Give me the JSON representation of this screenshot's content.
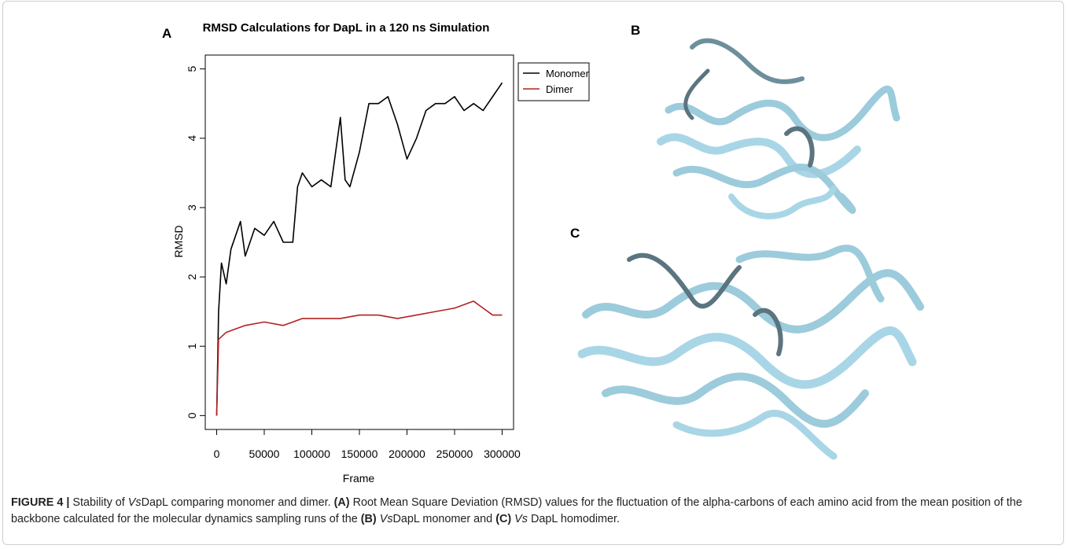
{
  "chart_data": {
    "type": "line",
    "title": "RMSD Calculations for DapL in a 120 ns Simulation",
    "x_label": "Frame",
    "y_label": "RMSD",
    "xlim": [
      -12000,
      312000
    ],
    "ylim": [
      -0.2,
      5.2
    ],
    "xticks": [
      0,
      50000,
      100000,
      150000,
      200000,
      250000,
      300000
    ],
    "yticks": [
      0,
      1,
      2,
      3,
      4,
      5
    ],
    "grid": false,
    "legend": "outside-right",
    "series": [
      {
        "name": "Monomer",
        "color": "#000000",
        "x": [
          0,
          2000,
          5000,
          10000,
          15000,
          20000,
          25000,
          30000,
          40000,
          50000,
          60000,
          70000,
          80000,
          85000,
          90000,
          100000,
          110000,
          120000,
          130000,
          135000,
          140000,
          150000,
          160000,
          170000,
          180000,
          190000,
          200000,
          210000,
          220000,
          230000,
          240000,
          250000,
          260000,
          270000,
          280000,
          290000,
          300000
        ],
        "values": [
          0,
          1.5,
          2.2,
          1.9,
          2.4,
          2.6,
          2.8,
          2.3,
          2.7,
          2.6,
          2.8,
          2.5,
          2.5,
          3.3,
          3.5,
          3.3,
          3.4,
          3.3,
          4.3,
          3.4,
          3.3,
          3.8,
          4.5,
          4.5,
          4.6,
          4.2,
          3.7,
          4.0,
          4.4,
          4.5,
          4.5,
          4.6,
          4.4,
          4.5,
          4.4,
          4.6,
          4.8
        ]
      },
      {
        "name": "Dimer",
        "color": "#b22222",
        "x": [
          0,
          2000,
          10000,
          20000,
          30000,
          50000,
          70000,
          90000,
          110000,
          130000,
          150000,
          170000,
          190000,
          210000,
          230000,
          250000,
          270000,
          280000,
          290000,
          300000
        ],
        "values": [
          0,
          1.1,
          1.2,
          1.25,
          1.3,
          1.35,
          1.3,
          1.4,
          1.4,
          1.4,
          1.45,
          1.45,
          1.4,
          1.45,
          1.5,
          1.55,
          1.65,
          1.55,
          1.45,
          1.45
        ]
      }
    ]
  },
  "panels": {
    "a": "A",
    "b": "B",
    "c": "C"
  },
  "caption": {
    "parts": [
      "FIGURE 4 |",
      " Stability of ",
      "Vs",
      "DapL comparing monomer and dimer. ",
      "(A)",
      " Root Mean Square Deviation (RMSD) values for the fluctuation of the alpha-carbons of each amino acid from the mean position of the backbone calculated for the molecular dynamics sampling runs of the ",
      "(B) ",
      "Vs",
      "DapL monomer and ",
      "(C) ",
      "Vs",
      " DapL homodimer."
    ]
  }
}
